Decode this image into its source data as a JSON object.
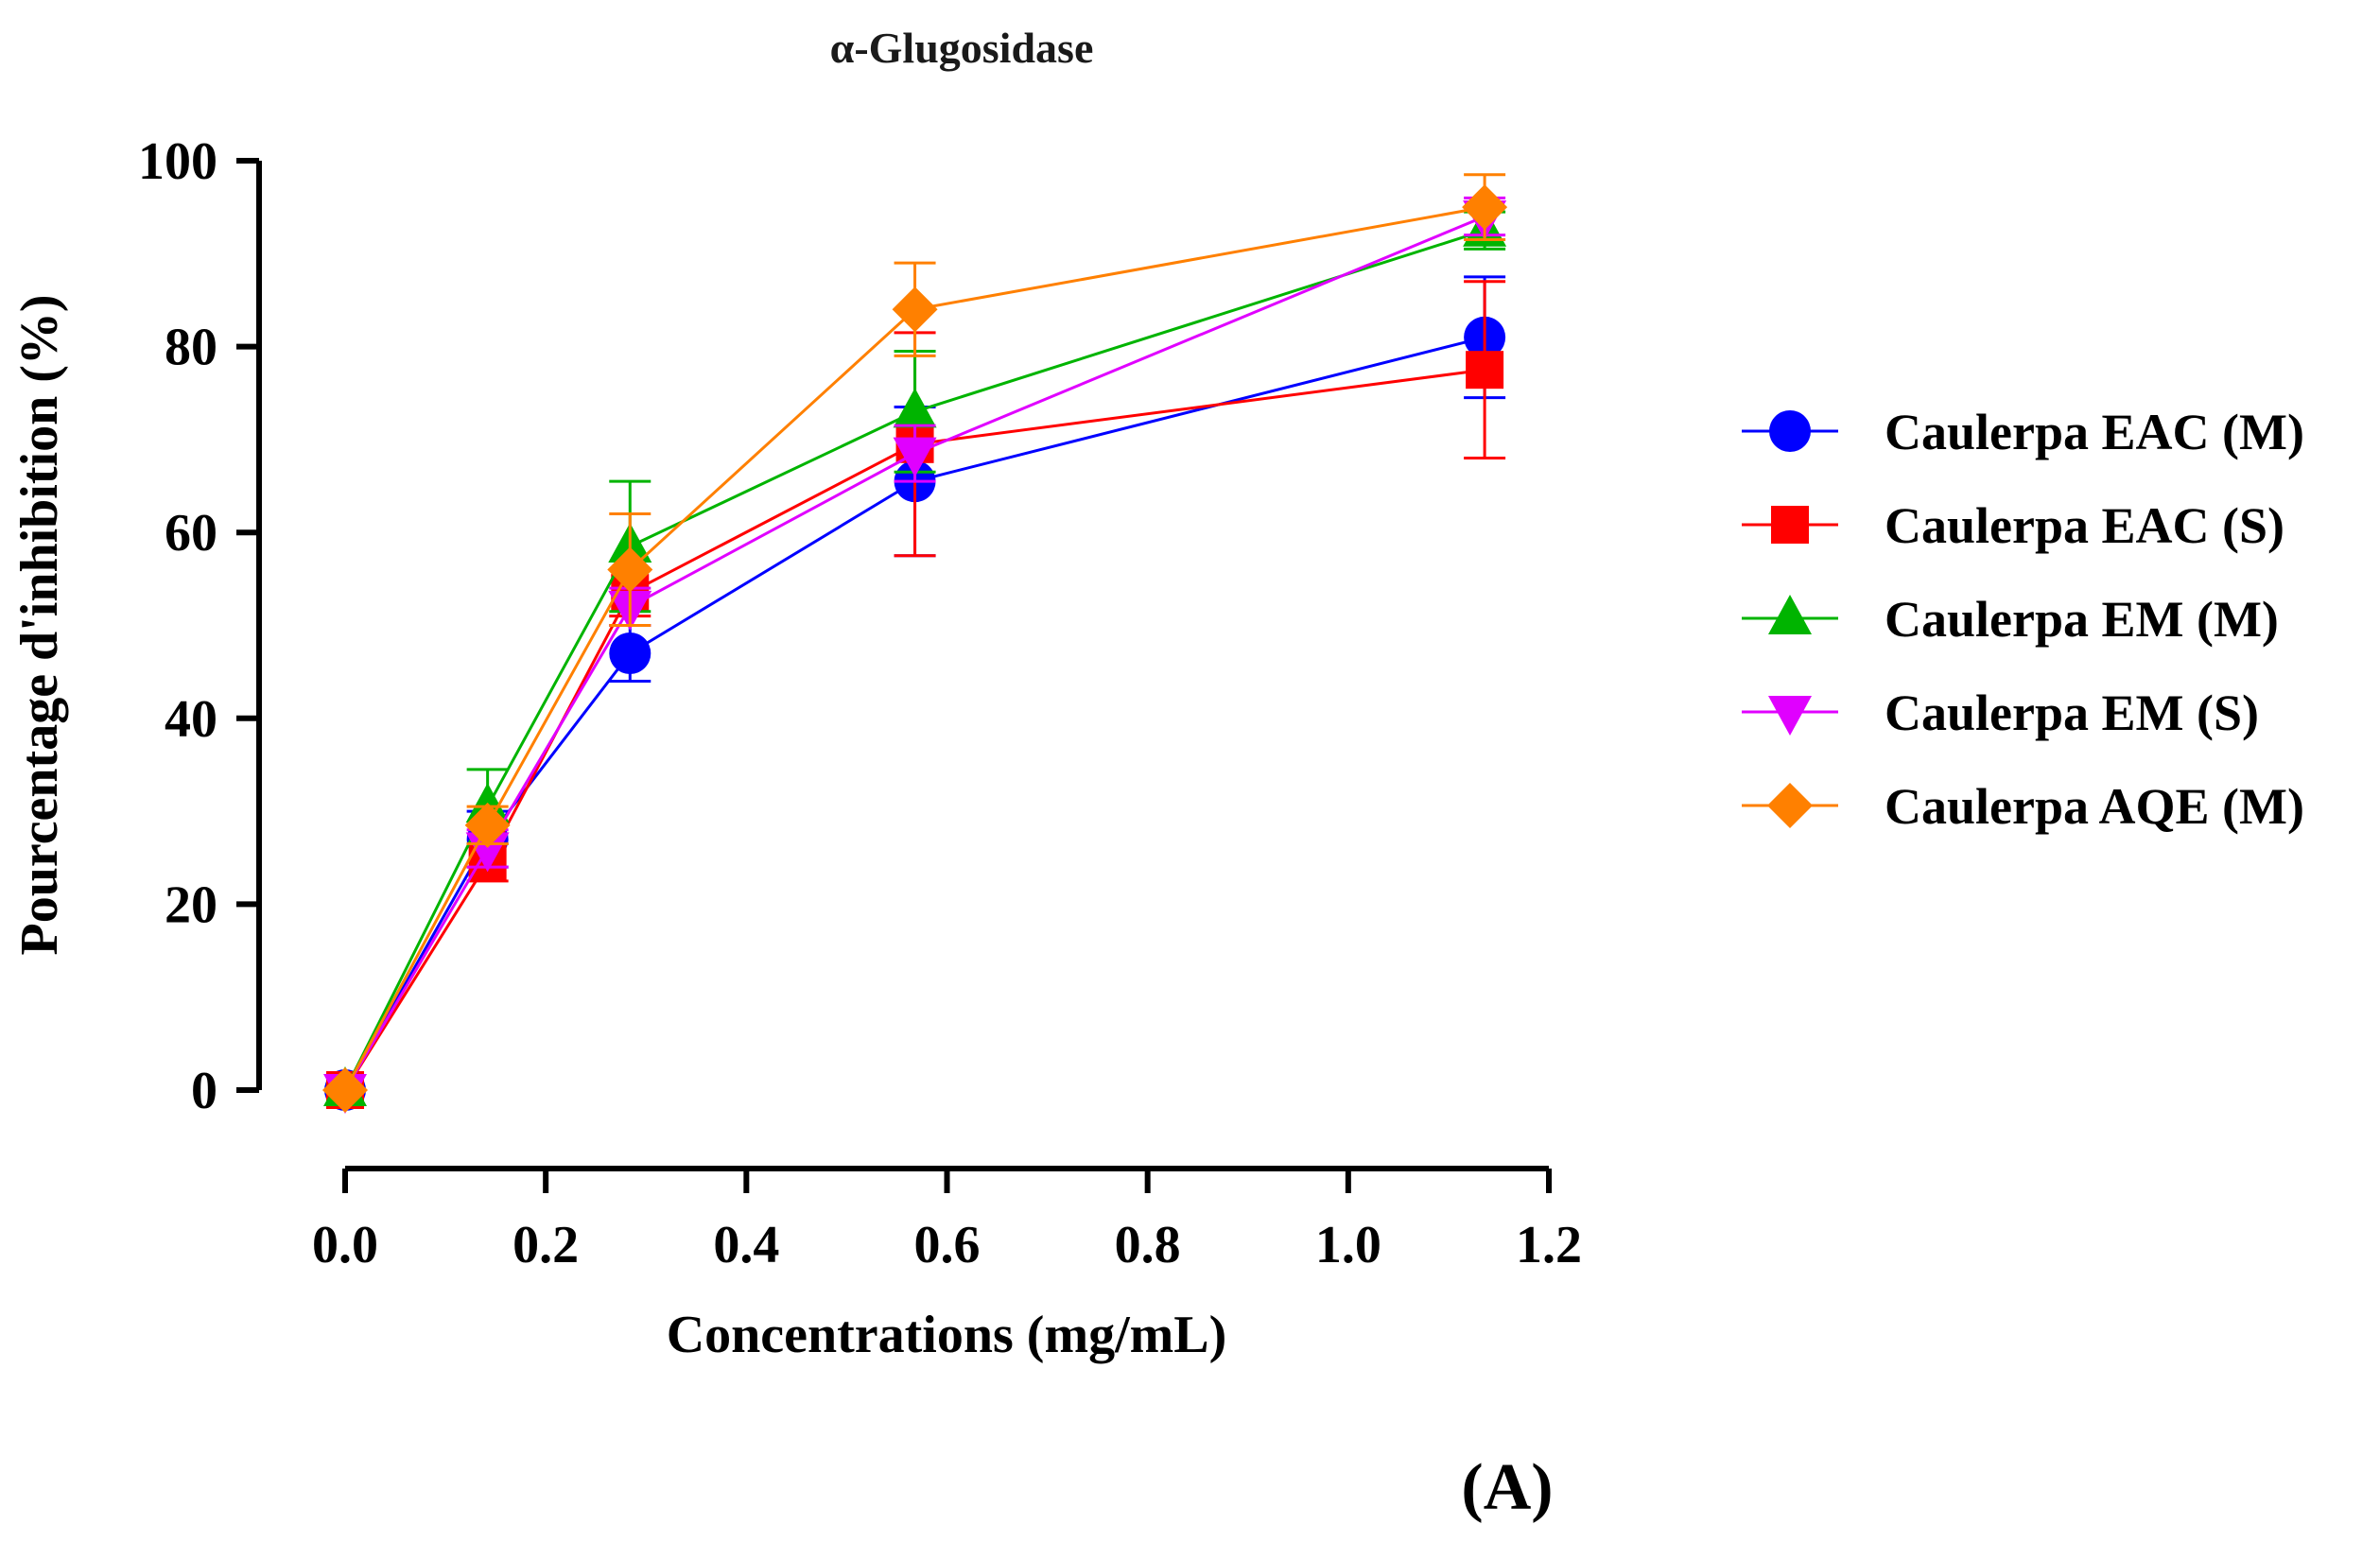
{
  "chart_data": {
    "type": "line",
    "title": "α-Glugosidase",
    "xlabel": "Concentrations (mg/mL)",
    "ylabel": "Pourcentage d'inhibition (%)",
    "xlim": [
      0,
      1.2
    ],
    "ylim": [
      0,
      100
    ],
    "x_ticks": [
      "0.0",
      "0.2",
      "0.4",
      "0.6",
      "0.8",
      "1.0",
      "1.2"
    ],
    "y_ticks": [
      "0",
      "20",
      "40",
      "60",
      "80",
      "100"
    ],
    "x": [
      0,
      0.142,
      0.284,
      0.568,
      1.136
    ],
    "grid": false,
    "legend_position": "right",
    "panel_label": "(A)",
    "series": [
      {
        "name": "Caulerpa EAC (M)",
        "color": "#0000ff",
        "marker": "circle",
        "values": [
          0,
          27,
          47,
          65.5,
          81
        ],
        "errors": [
          0,
          3,
          3,
          8,
          6.5
        ]
      },
      {
        "name": "Caulerpa EAC (S)",
        "color": "#ff0000",
        "marker": "square",
        "values": [
          0,
          24.5,
          53.5,
          69.5,
          77.5
        ],
        "errors": [
          0,
          2,
          2.5,
          12,
          9.5
        ]
      },
      {
        "name": "Caulerpa EM (M)",
        "color": "#00b400",
        "marker": "triangle-up",
        "values": [
          0,
          30.5,
          58.5,
          73,
          92.5
        ],
        "errors": [
          0,
          4,
          7,
          6.5,
          2
        ]
      },
      {
        "name": "Caulerpa EM (S)",
        "color": "#e000ff",
        "marker": "triangle-down",
        "values": [
          0,
          26,
          52,
          68.5,
          94
        ],
        "errors": [
          0,
          2,
          2,
          3,
          2
        ]
      },
      {
        "name": "Caulerpa AQE (M)",
        "color": "#ff8000",
        "marker": "diamond",
        "values": [
          0,
          28.5,
          56,
          84,
          95
        ],
        "errors": [
          0,
          2,
          6,
          5,
          3.5
        ]
      }
    ]
  }
}
